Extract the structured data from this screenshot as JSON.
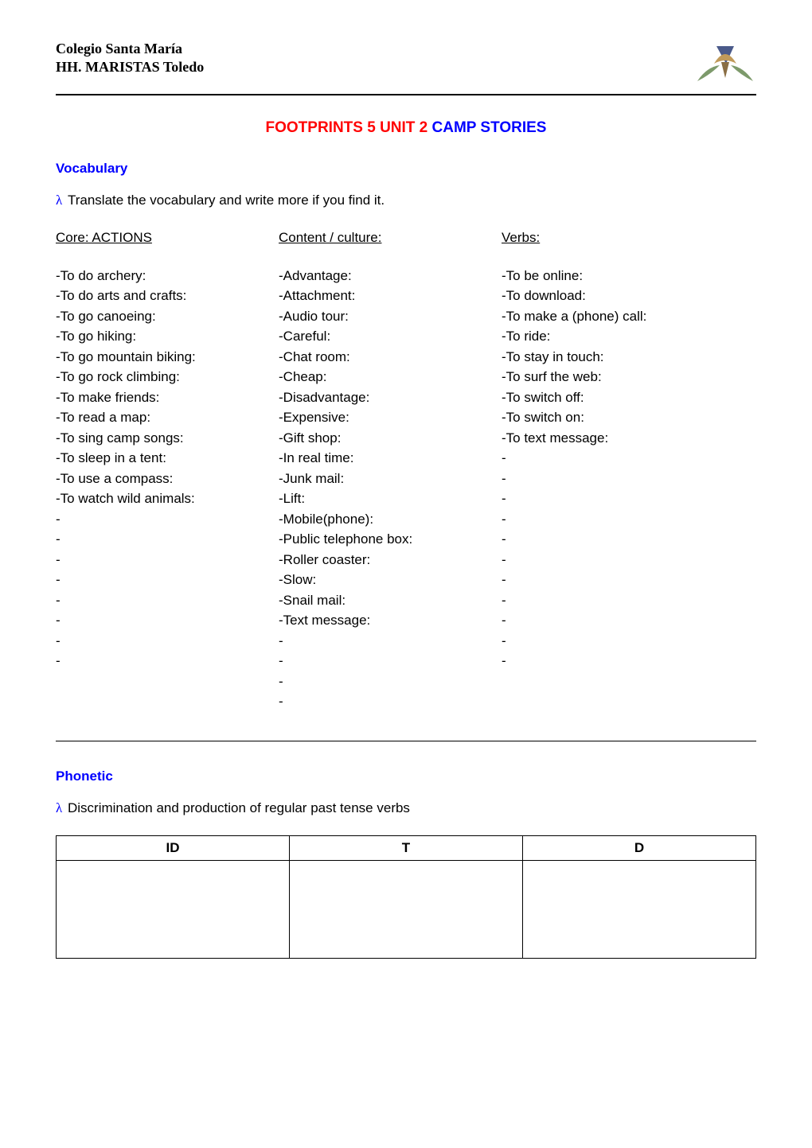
{
  "header": {
    "line1": "Colegio Santa María",
    "line2": "HH. MARISTAS Toledo"
  },
  "title": {
    "prefix": "FOOTPRINTS 5   UNIT 2  ",
    "main": "CAMP STORIES"
  },
  "vocab": {
    "heading": "Vocabulary",
    "instr": "Translate the vocabulary and write more if you find it.",
    "core_head": "Core: ACTIONS",
    "culture_head": "Content / culture:",
    "verbs_head": "Verbs:",
    "core": [
      "-To do archery:",
      "-To do arts and crafts:",
      "-To go canoeing:",
      "-To go hiking:",
      "-To go mountain biking:",
      "-To go rock climbing:",
      "-To make friends:",
      "-To read a map:",
      "-To sing camp songs:",
      "-To sleep in a tent:",
      "-To use a compass:",
      "-To watch wild animals:",
      "-",
      "-",
      "-",
      "-",
      "-",
      "-",
      "-",
      "-"
    ],
    "culture": [
      "-Advantage:",
      "-Attachment:",
      "-Audio tour:",
      "-Careful:",
      "-Chat room:",
      "-Cheap:",
      "-Disadvantage:",
      "-Expensive:",
      "-Gift shop:",
      "-In real time:",
      "-Junk mail:",
      "-Lift:",
      "-Mobile(phone):",
      "-Public telephone box:",
      "-Roller coaster:",
      "-Slow:",
      "-Snail mail:",
      "-Text message:",
      "-",
      "-",
      "-",
      "-"
    ],
    "verbs": [
      "-To be online:",
      "-To download:",
      "-To make a (phone) call:",
      "-To ride:",
      "-To stay in touch:",
      "-To surf the web:",
      "-To switch off:",
      "-To switch on:",
      "-To text message:",
      "-",
      "-",
      "-",
      "-",
      "-",
      "-",
      "-",
      "-",
      "-",
      "-",
      "-"
    ]
  },
  "phon": {
    "heading": "Phonetic",
    "instr": "Discrimination and production of regular past tense verbs",
    "col1": "ID",
    "col2": "T",
    "col3": "D"
  },
  "colors": {
    "red": "#ff0000",
    "blue": "#0000ff",
    "text": "#000000"
  },
  "fonts": {
    "body": "Verdana",
    "header": "Times New Roman",
    "size_body": 17,
    "size_title": 19
  }
}
